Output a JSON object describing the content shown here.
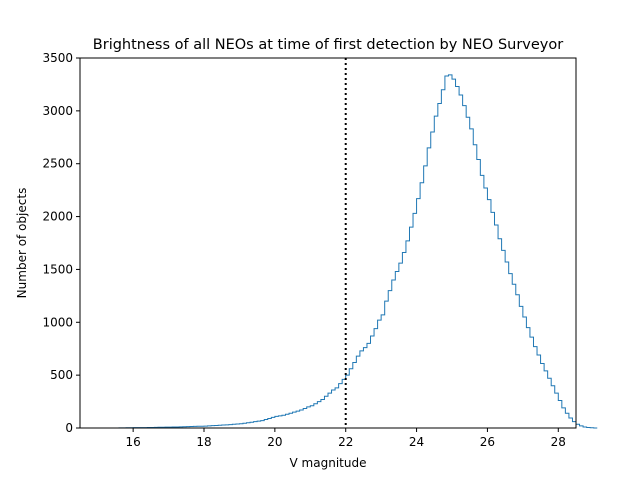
{
  "chart_data": {
    "type": "histogram",
    "title": "Brightness of all NEOs at time of first detection by NEO Surveyor",
    "xlabel": "V magnitude",
    "ylabel": "Number of objects",
    "xlim": [
      14.5,
      28.5
    ],
    "ylim": [
      0,
      3500
    ],
    "xticks": [
      16,
      18,
      20,
      22,
      24,
      26,
      28
    ],
    "yticks": [
      0,
      500,
      1000,
      1500,
      2000,
      2500,
      3000,
      3500
    ],
    "grid": false,
    "series_color": "#1f77b4",
    "bin_width": 0.1,
    "bin_start": 15.0,
    "counts": [
      0,
      0,
      0,
      0,
      0,
      0,
      1,
      1,
      2,
      2,
      3,
      3,
      4,
      4,
      5,
      5,
      6,
      7,
      7,
      8,
      8,
      9,
      10,
      11,
      12,
      13,
      14,
      15,
      16,
      17,
      18,
      20,
      22,
      24,
      26,
      28,
      30,
      32,
      35,
      38,
      40,
      45,
      50,
      55,
      60,
      65,
      70,
      80,
      90,
      100,
      110,
      115,
      120,
      130,
      140,
      150,
      160,
      170,
      185,
      200,
      210,
      230,
      250,
      270,
      300,
      330,
      360,
      380,
      420,
      460,
      500,
      560,
      620,
      680,
      730,
      760,
      800,
      870,
      940,
      1020,
      1070,
      1200,
      1300,
      1400,
      1480,
      1560,
      1660,
      1770,
      1900,
      2030,
      2170,
      2320,
      2480,
      2650,
      2800,
      2950,
      3070,
      3200,
      3330,
      3340,
      3300,
      3230,
      3150,
      3050,
      2940,
      2830,
      2680,
      2540,
      2390,
      2270,
      2160,
      2040,
      1920,
      1790,
      1680,
      1570,
      1460,
      1360,
      1260,
      1150,
      1050,
      950,
      860,
      770,
      690,
      610,
      540,
      470,
      400,
      330,
      260,
      190,
      140,
      95,
      60,
      35,
      20,
      10,
      5,
      2,
      0
    ],
    "reference_line": {
      "x": 22,
      "style": "dotted",
      "color": "#000000"
    }
  }
}
